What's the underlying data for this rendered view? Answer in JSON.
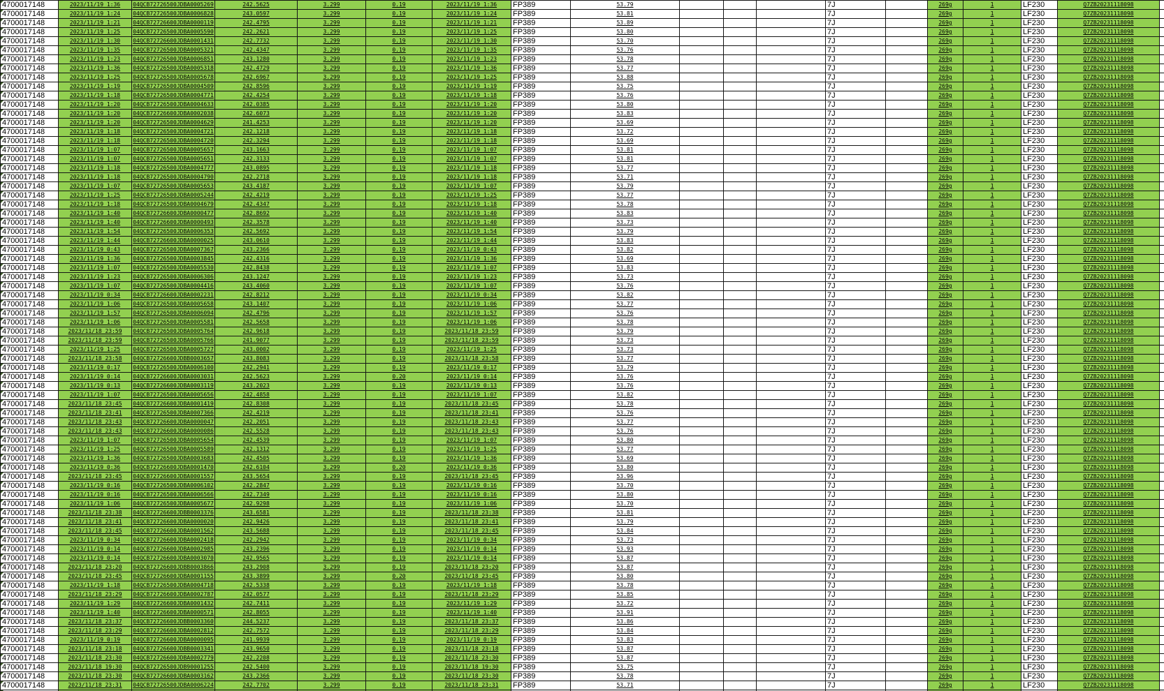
{
  "colors": {
    "row_fill_green": "#92d050",
    "grid_line": "#151515",
    "background": "#ffffff",
    "error_triangle": "#375623",
    "text": "#000000"
  },
  "table": {
    "shared": {
      "serial": "4700017148",
      "voltage": "3.299",
      "fp": "FP389",
      "grade": "7J",
      "weight_g": "269g",
      "count": "1",
      "model": "LF230",
      "batch": "Q7ZB20231118098"
    },
    "rows": [
      {
        "time": "2023/11/19 1:36",
        "code": "04QCB72726500JDBA0005269",
        "weight": "242.5625",
        "res": "0.19",
        "cap": "53.79"
      },
      {
        "time": "2023/11/19 1:24",
        "code": "04QCB72726500JDBA0006828",
        "weight": "243.0597",
        "res": "0.19",
        "cap": "53.81"
      },
      {
        "time": "2023/11/19 1:21",
        "code": "04QCB72726600JDBA0000119",
        "weight": "242.4795",
        "res": "0.19",
        "cap": "53.89"
      },
      {
        "time": "2023/11/19 1:25",
        "code": "04QCB72726500JDBA0005590",
        "weight": "242.2621",
        "res": "0.19",
        "cap": "53.80"
      },
      {
        "time": "2023/11/19 1:30",
        "code": "04QCB72726600JDBA0001431",
        "weight": "242.7732",
        "res": "0.19",
        "cap": "53.70"
      },
      {
        "time": "2023/11/19 1:35",
        "code": "04QCB72726500JDBA0005321",
        "weight": "242.4347",
        "res": "0.19",
        "cap": "53.76"
      },
      {
        "time": "2023/11/19 1:23",
        "code": "04QCB72726500JDBA0006851",
        "weight": "243.1280",
        "res": "0.19",
        "cap": "53.78"
      },
      {
        "time": "2023/11/19 1:36",
        "code": "04QCB72726500JDBA0005318",
        "weight": "242.4729",
        "res": "0.19",
        "cap": "53.77"
      },
      {
        "time": "2023/11/19 1:25",
        "code": "04QCB72726500JDBA0005678",
        "weight": "242.6967",
        "res": "0.19",
        "cap": "53.88"
      },
      {
        "time": "2023/11/19 1:19",
        "code": "04QCB72726500JDBA0004509",
        "weight": "242.8596",
        "res": "0.19",
        "cap": "53.75"
      },
      {
        "time": "2023/11/19 1:18",
        "code": "04QCB72726500JDBA0004771",
        "weight": "242.4254",
        "res": "0.19",
        "cap": "53.76"
      },
      {
        "time": "2023/11/19 1:20",
        "code": "04QCB72726500JDBA0004633",
        "weight": "242.0385",
        "res": "0.19",
        "cap": "53.80"
      },
      {
        "time": "2023/11/19 1:20",
        "code": "04QCB72726600JDBA0002038",
        "weight": "242.6073",
        "res": "0.19",
        "cap": "53.83"
      },
      {
        "time": "2023/11/19 1:20",
        "code": "04QCB72726500JDBA0004629",
        "weight": "241.4253",
        "res": "0.19",
        "cap": "53.69"
      },
      {
        "time": "2023/11/19 1:18",
        "code": "04QCB72726500JDBA0004721",
        "weight": "242.1218",
        "res": "0.19",
        "cap": "53.72"
      },
      {
        "time": "2023/11/19 1:18",
        "code": "04QCB72726500JDBA0004720",
        "weight": "242.3294",
        "res": "0.19",
        "cap": "53.69"
      },
      {
        "time": "2023/11/19 1:07",
        "code": "04QCB72726500JDBA0005657",
        "weight": "243.1663",
        "res": "0.19",
        "cap": "53.81"
      },
      {
        "time": "2023/11/19 1:07",
        "code": "04QCB72726500JDBA0005651",
        "weight": "242.3133",
        "res": "0.19",
        "cap": "53.81"
      },
      {
        "time": "2023/11/19 1:18",
        "code": "04QCB72726500JDBA0004777",
        "weight": "243.0895",
        "res": "0.19",
        "cap": "53.77"
      },
      {
        "time": "2023/11/19 1:18",
        "code": "04QCB72726500JDBA0004790",
        "weight": "242.2718",
        "res": "0.19",
        "cap": "53.71"
      },
      {
        "time": "2023/11/19 1:07",
        "code": "04QCB72726500JDBA0005653",
        "weight": "243.4187",
        "res": "0.19",
        "cap": "53.79"
      },
      {
        "time": "2023/11/19 1:25",
        "code": "04QCB72726500JDBA0005244",
        "weight": "242.4219",
        "res": "0.19",
        "cap": "53.77"
      },
      {
        "time": "2023/11/19 1:18",
        "code": "04QCB72726500JDBA0004679",
        "weight": "242.4347",
        "res": "0.19",
        "cap": "53.78"
      },
      {
        "time": "2023/11/19 1:40",
        "code": "04QCB72726600JDBA0000477",
        "weight": "242.8692",
        "res": "0.19",
        "cap": "53.83"
      },
      {
        "time": "2023/11/19 1:40",
        "code": "04QCB72726600JDBA0000493",
        "weight": "242.3578",
        "res": "0.19",
        "cap": "53.73"
      },
      {
        "time": "2023/11/19 1:54",
        "code": "04QCB72726500JDBA0006353",
        "weight": "242.5692",
        "res": "0.19",
        "cap": "53.79"
      },
      {
        "time": "2023/11/19 1:44",
        "code": "04QCB72726600JDBA0000025",
        "weight": "243.0610",
        "res": "0.19",
        "cap": "53.83"
      },
      {
        "time": "2023/11/19 0:43",
        "code": "04QCB72726500JDBA0007367",
        "weight": "243.2366",
        "res": "0.19",
        "cap": "53.82"
      },
      {
        "time": "2023/11/19 1:36",
        "code": "04QCB72726500JDBA0003845",
        "weight": "242.4316",
        "res": "0.19",
        "cap": "53.69"
      },
      {
        "time": "2023/11/19 1:07",
        "code": "04QCB72726500JDBA0005530",
        "weight": "242.8438",
        "res": "0.19",
        "cap": "53.83"
      },
      {
        "time": "2023/11/19 1:23",
        "code": "04QCB72726500JDBA0006306",
        "weight": "243.1247",
        "res": "0.19",
        "cap": "53.73"
      },
      {
        "time": "2023/11/19 1:07",
        "code": "04QCB72726500JDBA0004416",
        "weight": "243.4060",
        "res": "0.19",
        "cap": "53.76"
      },
      {
        "time": "2023/11/19 0:34",
        "code": "04QCB72726600JDBA0002231",
        "weight": "242.8212",
        "res": "0.19",
        "cap": "53.82"
      },
      {
        "time": "2023/11/19 1:06",
        "code": "04QCB72726500JDBA0005658",
        "weight": "243.1407",
        "res": "0.19",
        "cap": "53.77"
      },
      {
        "time": "2023/11/19 1:57",
        "code": "04QCB72726500JDBA0006094",
        "weight": "242.4796",
        "res": "0.19",
        "cap": "53.76"
      },
      {
        "time": "2023/11/19 1:06",
        "code": "04QCB72726500JDBA0005581",
        "weight": "242.5658",
        "res": "0.19",
        "cap": "53.78"
      },
      {
        "time": "2023/11/18 23:59",
        "code": "04QCB72726500JDBA0005764",
        "weight": "242.9618",
        "res": "0.19",
        "cap": "53.79"
      },
      {
        "time": "2023/11/18 23:59",
        "code": "04QCB72726500JDBA0005766",
        "weight": "241.9077",
        "res": "0.19",
        "cap": "53.73"
      },
      {
        "time": "2023/11/19 1:25",
        "code": "04QCB72726500JDBA0005727",
        "weight": "243.0002",
        "res": "0.19",
        "cap": "53.73"
      },
      {
        "time": "2023/11/18 23:58",
        "code": "04QCB72726600JDBB0003657",
        "weight": "243.8083",
        "res": "0.19",
        "cap": "53.77"
      },
      {
        "time": "2023/11/19 0:17",
        "code": "04QCB72726500JDBA0006100",
        "weight": "242.2941",
        "res": "0.19",
        "cap": "53.79"
      },
      {
        "time": "2023/11/19 0:14",
        "code": "04QCB72726600JDBA0003031",
        "weight": "242.5623",
        "res": "0.20",
        "cap": "53.76"
      },
      {
        "time": "2023/11/19 0:13",
        "code": "04QCB72726600JDBA0003119",
        "weight": "243.2023",
        "res": "0.19",
        "cap": "53.76"
      },
      {
        "time": "2023/11/19 1:07",
        "code": "04QCB72726500JDBA0005656",
        "weight": "242.4858",
        "res": "0.19",
        "cap": "53.82"
      },
      {
        "time": "2023/11/18 23:45",
        "code": "04QCB72726600JDBA0001419",
        "weight": "242.8308",
        "res": "0.19",
        "cap": "53.78"
      },
      {
        "time": "2023/11/18 23:41",
        "code": "04QCB72726500JDBA0007366",
        "weight": "242.4219",
        "res": "0.19",
        "cap": "53.76"
      },
      {
        "time": "2023/11/18 23:43",
        "code": "04QCB72726600JDBA0000047",
        "weight": "242.2051",
        "res": "0.19",
        "cap": "53.77"
      },
      {
        "time": "2023/11/18 23:43",
        "code": "04QCB72726600JDBA0000086",
        "weight": "242.5528",
        "res": "0.19",
        "cap": "53.76"
      },
      {
        "time": "2023/11/19 1:07",
        "code": "04QCB72726500JDBA0005654",
        "weight": "242.4539",
        "res": "0.19",
        "cap": "53.80"
      },
      {
        "time": "2023/11/19 1:25",
        "code": "04QCB72726500JDBA0005589",
        "weight": "242.1312",
        "res": "0.19",
        "cap": "53.77"
      },
      {
        "time": "2023/11/19 1:36",
        "code": "04QCB72726500JDBA0003683",
        "weight": "242.4505",
        "res": "0.19",
        "cap": "53.69"
      },
      {
        "time": "2023/11/19 0:36",
        "code": "04QCB72726600JDBA0001470",
        "weight": "242.6104",
        "res": "0.20",
        "cap": "53.80"
      },
      {
        "time": "2023/11/18 23:45",
        "code": "04QCB72726600JDBA0001557",
        "weight": "243.5654",
        "res": "0.19",
        "cap": "53.96"
      },
      {
        "time": "2023/11/19 0:16",
        "code": "04QCB72726500JDBA0006102",
        "weight": "242.2847",
        "res": "0.19",
        "cap": "53.70"
      },
      {
        "time": "2023/11/19 0:16",
        "code": "04QCB72726500JDBA0006566",
        "weight": "242.7349",
        "res": "0.19",
        "cap": "53.80"
      },
      {
        "time": "2023/11/19 1:06",
        "code": "04QCB72726500JDBA0005677",
        "weight": "242.9298",
        "res": "0.19",
        "cap": "53.70"
      },
      {
        "time": "2023/11/18 23:38",
        "code": "04QCB72726600JDBB0003376",
        "weight": "243.6581",
        "res": "0.19",
        "cap": "53.81"
      },
      {
        "time": "2023/11/18 23:41",
        "code": "04QCB72726600JDBA0000020",
        "weight": "242.9426",
        "res": "0.19",
        "cap": "53.79"
      },
      {
        "time": "2023/11/18 23:45",
        "code": "04QCB72726600JDBA0001562",
        "weight": "243.5688",
        "res": "0.19",
        "cap": "53.84"
      },
      {
        "time": "2023/11/19 0:34",
        "code": "04QCB72726600JDBA0002418",
        "weight": "242.2942",
        "res": "0.19",
        "cap": "53.73"
      },
      {
        "time": "2023/11/19 0:14",
        "code": "04QCB72726600JDBA0002985",
        "weight": "243.2396",
        "res": "0.19",
        "cap": "53.93"
      },
      {
        "time": "2023/11/19 0:14",
        "code": "04QCB72726600JDBA0003070",
        "weight": "242.9565",
        "res": "0.19",
        "cap": "53.87"
      },
      {
        "time": "2023/11/18 23:20",
        "code": "04QCB72726600JDBB0003866",
        "weight": "243.2908",
        "res": "0.19",
        "cap": "53.87"
      },
      {
        "time": "2023/11/18 23:45",
        "code": "04QCB72726600JDBA0001155",
        "weight": "243.3899",
        "res": "0.20",
        "cap": "53.80"
      },
      {
        "time": "2023/11/19 1:18",
        "code": "04QCB72726500JDBA0004718",
        "weight": "242.5338",
        "res": "0.19",
        "cap": "53.78"
      },
      {
        "time": "2023/11/18 23:29",
        "code": "04QCB72726600JDBA0002787",
        "weight": "242.0577",
        "res": "0.19",
        "cap": "53.85"
      },
      {
        "time": "2023/11/19 1:29",
        "code": "04QCB72726600JDBA0001432",
        "weight": "242.7411",
        "res": "0.19",
        "cap": "53.72"
      },
      {
        "time": "2023/11/19 1:40",
        "code": "04QCB72726600JDBA0000571",
        "weight": "242.8055",
        "res": "0.19",
        "cap": "53.91"
      },
      {
        "time": "2023/11/18 23:37",
        "code": "04QCB72726600JDBB0003360",
        "weight": "244.5237",
        "res": "0.19",
        "cap": "53.86"
      },
      {
        "time": "2023/11/18 23:29",
        "code": "04QCB72726600JDBA0002812",
        "weight": "242.7572",
        "res": "0.19",
        "cap": "53.84"
      },
      {
        "time": "2023/11/19 0:19",
        "code": "04QCB72726600JDBA0000095",
        "weight": "241.9939",
        "res": "0.19",
        "cap": "53.83"
      },
      {
        "time": "2023/11/18 23:18",
        "code": "04QCB72726600JDBB0003341",
        "weight": "243.9650",
        "res": "0.19",
        "cap": "53.87"
      },
      {
        "time": "2023/11/18 23:30",
        "code": "04QCB72726600JDBA0002779",
        "weight": "242.2208",
        "res": "0.19",
        "cap": "53.87"
      },
      {
        "time": "2023/11/18 19:30",
        "code": "04QCB72726500JDB90001255",
        "weight": "242.5400",
        "res": "0.19",
        "cap": "53.75"
      },
      {
        "time": "2023/11/18 23:30",
        "code": "04QCB72726600JDBA0003162",
        "weight": "243.2366",
        "res": "0.19",
        "cap": "53.78"
      },
      {
        "time": "2023/11/18 23:31",
        "code": "04QCB72726500JDBA0006224",
        "weight": "242.7702",
        "res": "0.19",
        "cap": "53.71"
      }
    ]
  }
}
